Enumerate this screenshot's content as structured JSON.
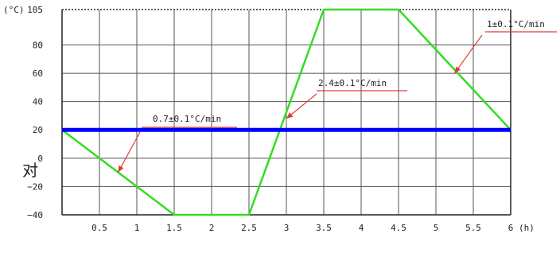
{
  "chart_data": {
    "type": "line",
    "ylabel": "(°C)",
    "xlabel": "(h)",
    "xlim": [
      0,
      6
    ],
    "ylim": [
      -40,
      105
    ],
    "x_ticks": [
      0.5,
      1,
      1.5,
      2,
      2.5,
      3,
      3.5,
      4,
      4.5,
      5,
      5.5,
      6
    ],
    "y_ticks": [
      -40,
      -20,
      0,
      20,
      40,
      60,
      80,
      105
    ],
    "grid": true,
    "series": [
      {
        "color": "#33dd22",
        "x": [
          0,
          1.5,
          2.5,
          3.5,
          4.5,
          6
        ],
        "y": [
          20,
          -40,
          -40,
          105,
          105,
          20
        ]
      },
      {
        "color": "#0000ff",
        "x": [
          0,
          6
        ],
        "y": [
          20,
          20
        ]
      }
    ],
    "annotations": [
      {
        "text": "0.7±0.1°C/min",
        "x": 0.75,
        "y": -10
      },
      {
        "text": "2.4±0.1°C/min",
        "x": 3.0,
        "y": 28
      },
      {
        "text": "1±0.1°C/min",
        "x": 5.25,
        "y": 60
      }
    ]
  },
  "side_text": "对"
}
